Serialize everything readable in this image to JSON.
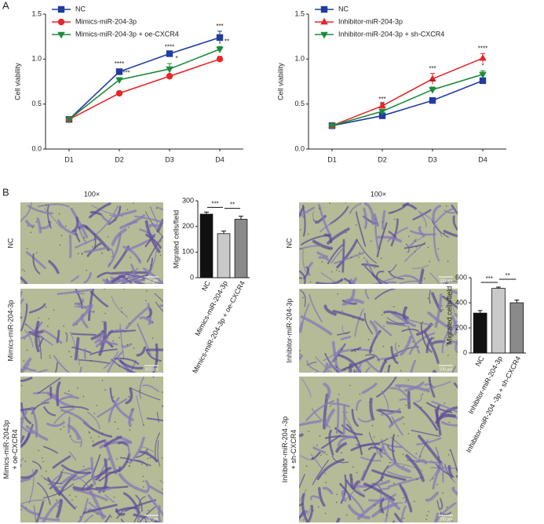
{
  "panel_labels": [
    "A",
    "B"
  ],
  "images": [
    {
      "magnification": "100×",
      "scale_bar": "100 μm",
      "row_labels": [
        [
          "NC"
        ],
        [
          "Mimics-miR-204-3p"
        ],
        [
          "Mimics-miR-2043p",
          "+ oe-CXCR4"
        ]
      ]
    },
    {
      "magnification": "100×",
      "scale_bar": "100 μm",
      "row_labels": [
        [
          "NC"
        ],
        [
          "Inhibitor-miR-204-3p"
        ],
        [
          "Inhibitor-miR-204 -3p",
          "+ sh-CXCR4"
        ]
      ]
    }
  ],
  "chart_data": [
    {
      "type": "line",
      "ylabel": "Cell viability",
      "categories": [
        "D1",
        "D2",
        "D3",
        "D4"
      ],
      "ylim": [
        0,
        1.5
      ],
      "yticks": [
        {
          "value": 0,
          "label": "0.0"
        },
        0.5,
        {
          "value": 1,
          "label": "1.0"
        },
        1.5
      ],
      "legend": "upper left",
      "series": [
        {
          "name": "NC",
          "color": "#1f3c9e",
          "marker": "square",
          "values": [
            0.33,
            0.86,
            1.06,
            1.24
          ],
          "errors": [
            0.01,
            0.03,
            0.02,
            0.07
          ],
          "stars": [
            null,
            "****",
            "****",
            "***"
          ]
        },
        {
          "name": "Mimics-miR-204-3p",
          "color": "#e8262a",
          "marker": "circle",
          "values": [
            0.33,
            0.62,
            0.81,
            1.0
          ],
          "errors": [
            0.01,
            0.01,
            0.02,
            0.03
          ],
          "stars": [
            null,
            null,
            null,
            null
          ]
        },
        {
          "name": "Mimics-miR-204-3p + oe-CXCR4",
          "color": "#1e8a3c",
          "marker": "triangle-down",
          "values": [
            0.33,
            0.77,
            0.89,
            1.11
          ],
          "errors": [
            0.01,
            0.02,
            0.06,
            0.03
          ],
          "stars": [
            null,
            "***",
            "*",
            "**"
          ]
        }
      ]
    },
    {
      "type": "line",
      "ylabel": "Cell viability",
      "categories": [
        "D1",
        "D2",
        "D3",
        "D4"
      ],
      "ylim": [
        0,
        1.5
      ],
      "yticks": [
        {
          "value": 0,
          "label": "0.0"
        },
        0.5,
        {
          "value": 1,
          "label": "1.0"
        },
        1.5
      ],
      "legend": "upper left",
      "series": [
        {
          "name": "NC",
          "color": "#1f3c9e",
          "marker": "square",
          "values": [
            0.26,
            0.37,
            0.54,
            0.76
          ],
          "errors": [
            0.01,
            0.03,
            0.03,
            0.02
          ],
          "stars": [
            null,
            null,
            null,
            null
          ]
        },
        {
          "name": "Inhibitor-miR-204-3p",
          "color": "#e8262a",
          "marker": "triangle-up",
          "values": [
            0.26,
            0.48,
            0.78,
            1.01
          ],
          "errors": [
            0.01,
            0.02,
            0.06,
            0.05
          ],
          "stars": [
            null,
            "***",
            "***",
            "****"
          ]
        },
        {
          "name": "Inhibitor-miR-204-3p + sh-CXCR4",
          "color": "#1e8a3c",
          "marker": "triangle-down",
          "values": [
            0.26,
            0.42,
            0.66,
            0.83
          ],
          "errors": [
            0.01,
            0.02,
            0.03,
            0.04
          ],
          "stars": [
            null,
            "**",
            "**",
            "*"
          ]
        }
      ]
    },
    {
      "type": "bar",
      "ylabel": "Migrated cells/field",
      "categories": [
        "NC",
        "Mimics-miR-204-3p",
        "Mimics-miR-204-3p + oe-CXCR4"
      ],
      "values": [
        248,
        172,
        228
      ],
      "errors": [
        8,
        10,
        12
      ],
      "colors": [
        "#111111",
        "#c9c9c9",
        "#8a8a8a"
      ],
      "ylim": [
        0,
        300
      ],
      "yticks": [
        0,
        100,
        200,
        300
      ],
      "brackets": [
        "***",
        "**"
      ]
    },
    {
      "type": "bar",
      "ylabel": "Migrated cells/field",
      "categories": [
        "NC",
        "Inhibitor-miR-204-3p",
        "Inhibitor-miR-204 -3p + sh-CXCR4"
      ],
      "values": [
        318,
        515,
        400
      ],
      "errors": [
        20,
        10,
        22
      ],
      "colors": [
        "#111111",
        "#c9c9c9",
        "#8a8a8a"
      ],
      "ylim": [
        0,
        600
      ],
      "yticks": [
        0,
        200,
        400,
        600
      ],
      "brackets": [
        "***",
        "**"
      ]
    }
  ]
}
